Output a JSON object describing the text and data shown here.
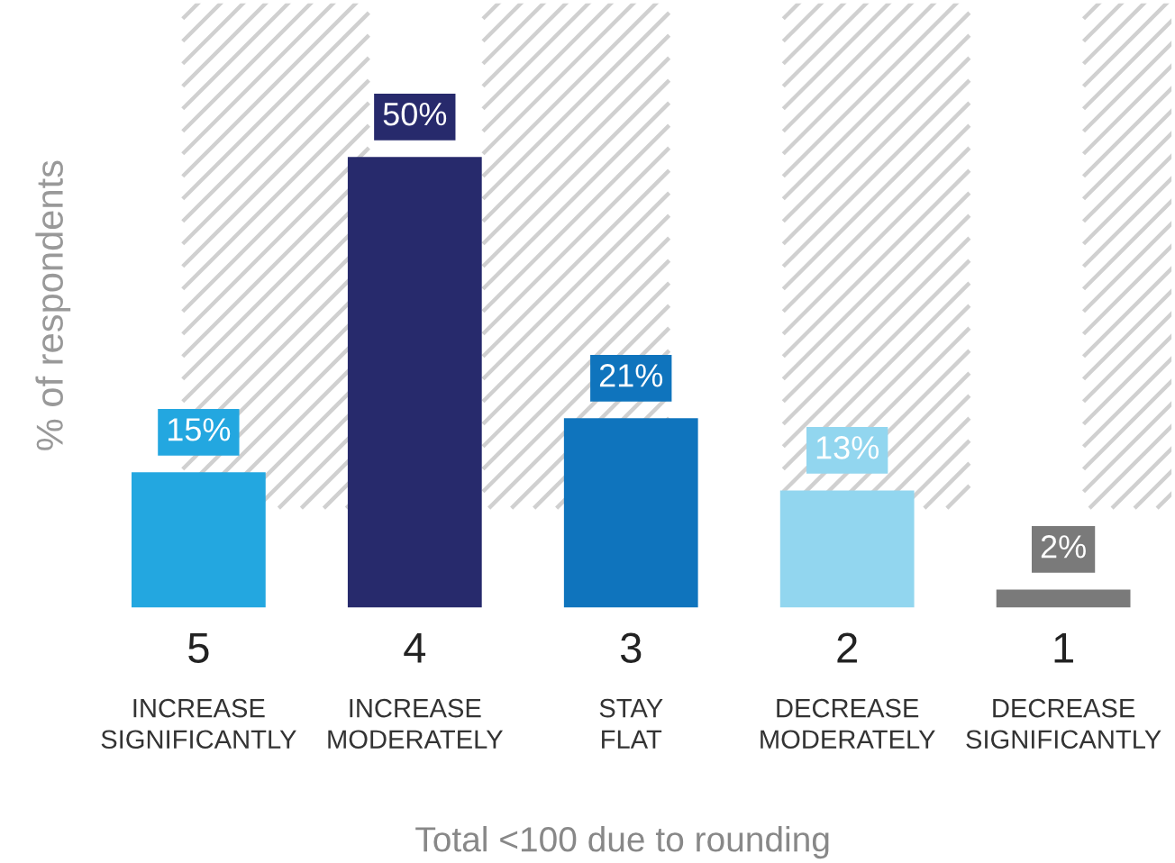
{
  "chart_data": {
    "type": "bar",
    "ylabel": "% of respondents",
    "categories": [
      "5\nINCREASE\nSIGNIFICANTLY",
      "4\nINCREASE\nMODERATELY",
      "3\nSTAY\nFLAT",
      "2\nDECREASE\nMODERATELY",
      "1\nDECREASE\nSIGNIFICANTLY"
    ],
    "values": [
      15,
      50,
      21,
      13,
      2
    ],
    "colors": [
      "#23a7e0",
      "#272a6c",
      "#0f74bd",
      "#92d6ef",
      "#7a7a7a"
    ],
    "value_labels": [
      "15%",
      "50%",
      "21%",
      "13%",
      "2%"
    ],
    "annotations": [
      "Total <100 due to rounding"
    ],
    "grid": false,
    "legend": false
  }
}
